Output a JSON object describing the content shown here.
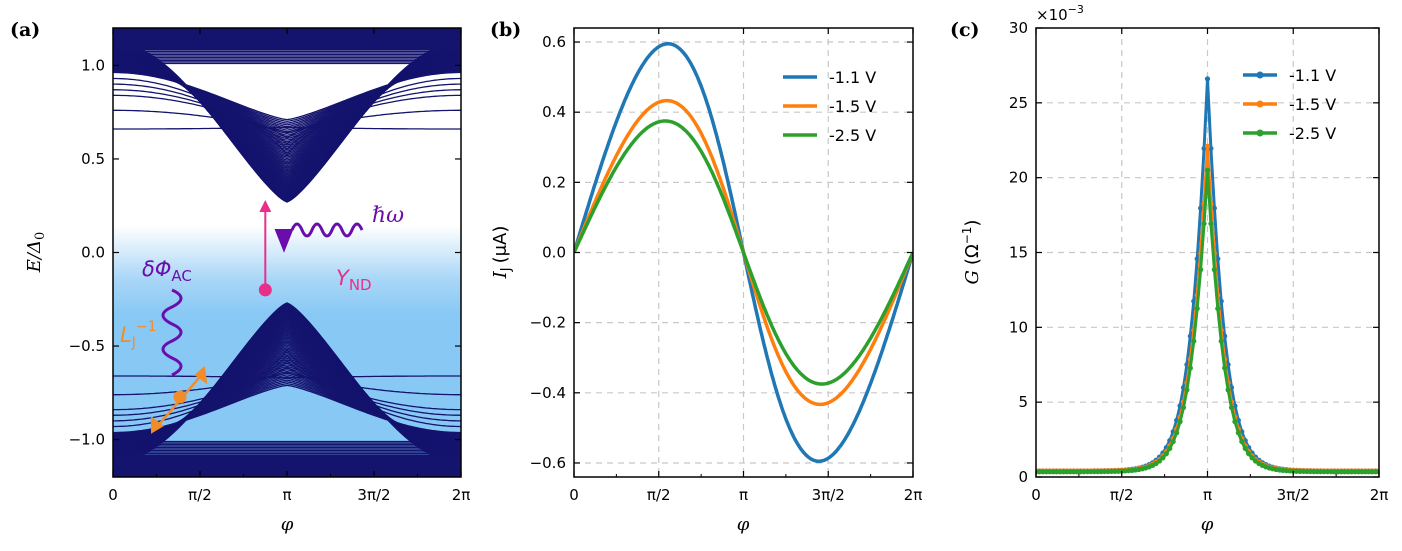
{
  "chart_data": [
    {
      "panel": "(a)",
      "type": "line",
      "title": "",
      "xlabel": "φ",
      "ylabel": "E/Δ0",
      "xlim": [
        0,
        6.2832
      ],
      "ylim": [
        -1.2,
        1.2
      ],
      "x_ticks": [
        "0",
        "π/2",
        "π",
        "3π/2",
        "2π"
      ],
      "y_ticks": [
        "−1.0",
        "−0.5",
        "0.0",
        "0.5",
        "1.0"
      ],
      "series_description": "Andreev bound state spectrum: many dark-blue bands, conduction bands above with minimum ~0.27 at φ=π, valence bands mirrored below",
      "band_color": "#14146e",
      "background_gradient_colors": [
        "#ffffff",
        "#87c8f5"
      ],
      "annotations": {
        "photon": "ℏω",
        "admittance": "Y",
        "admittance_sub": "ND",
        "flux": "δΦ",
        "flux_sub": "AC",
        "inductance": "L",
        "inductance_sub": "J",
        "inductance_sup": "−1",
        "photon_color": "#6a0dad",
        "admittance_color": "#e8308a",
        "inductance_color": "#f28c28"
      }
    },
    {
      "panel": "(b)",
      "type": "line",
      "xlabel": "φ",
      "ylabel": "I",
      "ylabel_sub": "J",
      "ylabel_unit": "(μA)",
      "xlim": [
        0,
        6.2832
      ],
      "ylim": [
        -0.64,
        0.64
      ],
      "x_ticks": [
        "0",
        "π/2",
        "π",
        "3π/2",
        "2π"
      ],
      "y_ticks": [
        "−0.6",
        "−0.4",
        "−0.2",
        "0.0",
        "0.2",
        "0.4",
        "0.6"
      ],
      "series": [
        {
          "name": "-1.1 V",
          "color": "#1f77b4",
          "amplitude": 0.595,
          "skew": 0.5
        },
        {
          "name": "-1.5 V",
          "color": "#ff7f0e",
          "amplitude": 0.433,
          "skew": 0.45
        },
        {
          "name": "-2.5 V",
          "color": "#2ca02c",
          "amplitude": 0.375,
          "skew": 0.38
        }
      ]
    },
    {
      "panel": "(c)",
      "type": "line",
      "xlabel": "φ",
      "ylabel": "G",
      "ylabel_unit": "(Ω",
      "ylabel_sup": "−1",
      "ylabel_close": ")",
      "multiplier": "×10",
      "multiplier_exp": "−3",
      "xlim": [
        0,
        6.2832
      ],
      "ylim": [
        0,
        30
      ],
      "x_ticks": [
        "0",
        "π/2",
        "π",
        "3π/2",
        "2π"
      ],
      "y_ticks": [
        "0",
        "5",
        "10",
        "15",
        "20",
        "25",
        "30"
      ],
      "series": [
        {
          "name": "-1.1 V",
          "color": "#1f77b4",
          "peak": 26.6,
          "width": 0.33,
          "base": 0.4
        },
        {
          "name": "-1.5 V",
          "color": "#ff7f0e",
          "peak": 22.1,
          "width": 0.33,
          "base": 0.4
        },
        {
          "name": "-2.5 V",
          "color": "#2ca02c",
          "peak": 20.5,
          "width": 0.33,
          "base": 0.35
        }
      ]
    }
  ]
}
